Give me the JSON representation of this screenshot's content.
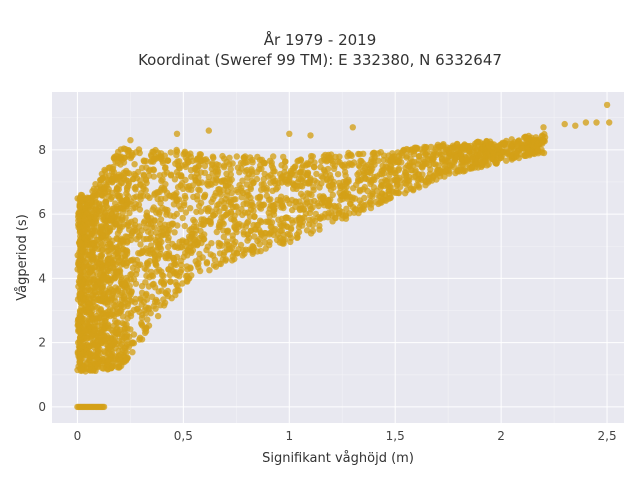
{
  "chart_data": {
    "type": "scatter",
    "title_line1": "År 1979 - 2019",
    "title_line2": "Koordinat (Sweref 99 TM): E 332380, N 6332647",
    "xlabel": "Signifikant våghöjd (m)",
    "ylabel": "Vågperiod (s)",
    "xlim": [
      -0.12,
      2.58
    ],
    "ylim": [
      -0.5,
      9.8
    ],
    "xticks": [
      0,
      0.5,
      1,
      1.5,
      2,
      2.5
    ],
    "xtick_labels": [
      "0",
      "0,5",
      "1",
      "1,5",
      "2",
      "2,5"
    ],
    "yticks": [
      0,
      2,
      4,
      6,
      8
    ],
    "ytick_labels": [
      "0",
      "2",
      "4",
      "6",
      "8"
    ],
    "grid": true,
    "marker_color": "#D4A017",
    "background": "#E8E8F0",
    "cluster_bands": [
      {
        "x": 0.05,
        "y_min": 1.1,
        "y_max": 6.6
      },
      {
        "x": 0.2,
        "y_min": 1.2,
        "y_max": 8.1
      },
      {
        "x": 0.3,
        "y_min": 2.0,
        "y_max": 8.0
      },
      {
        "x": 0.5,
        "y_min": 3.8,
        "y_max": 8.0
      },
      {
        "x": 0.75,
        "y_min": 4.6,
        "y_max": 7.8
      },
      {
        "x": 1.0,
        "y_min": 5.1,
        "y_max": 7.8
      },
      {
        "x": 1.25,
        "y_min": 5.8,
        "y_max": 7.9
      },
      {
        "x": 1.5,
        "y_min": 6.5,
        "y_max": 8.0
      },
      {
        "x": 1.75,
        "y_min": 7.2,
        "y_max": 8.2
      },
      {
        "x": 2.0,
        "y_min": 7.6,
        "y_max": 8.3
      },
      {
        "x": 2.2,
        "y_min": 7.9,
        "y_max": 8.5
      }
    ],
    "zero_period_points": {
      "x_min": 0.0,
      "x_max": 0.13,
      "y": 0
    },
    "outlier_points": [
      {
        "x": 2.5,
        "y": 9.4
      },
      {
        "x": 2.51,
        "y": 8.85
      },
      {
        "x": 2.45,
        "y": 8.85
      },
      {
        "x": 2.4,
        "y": 8.85
      },
      {
        "x": 2.35,
        "y": 8.75
      },
      {
        "x": 2.3,
        "y": 8.8
      },
      {
        "x": 2.2,
        "y": 8.7
      },
      {
        "x": 1.3,
        "y": 8.7
      },
      {
        "x": 0.62,
        "y": 8.6
      },
      {
        "x": 0.47,
        "y": 8.5
      },
      {
        "x": 1.0,
        "y": 8.5
      },
      {
        "x": 1.1,
        "y": 8.45
      },
      {
        "x": 0.25,
        "y": 8.3
      }
    ]
  }
}
